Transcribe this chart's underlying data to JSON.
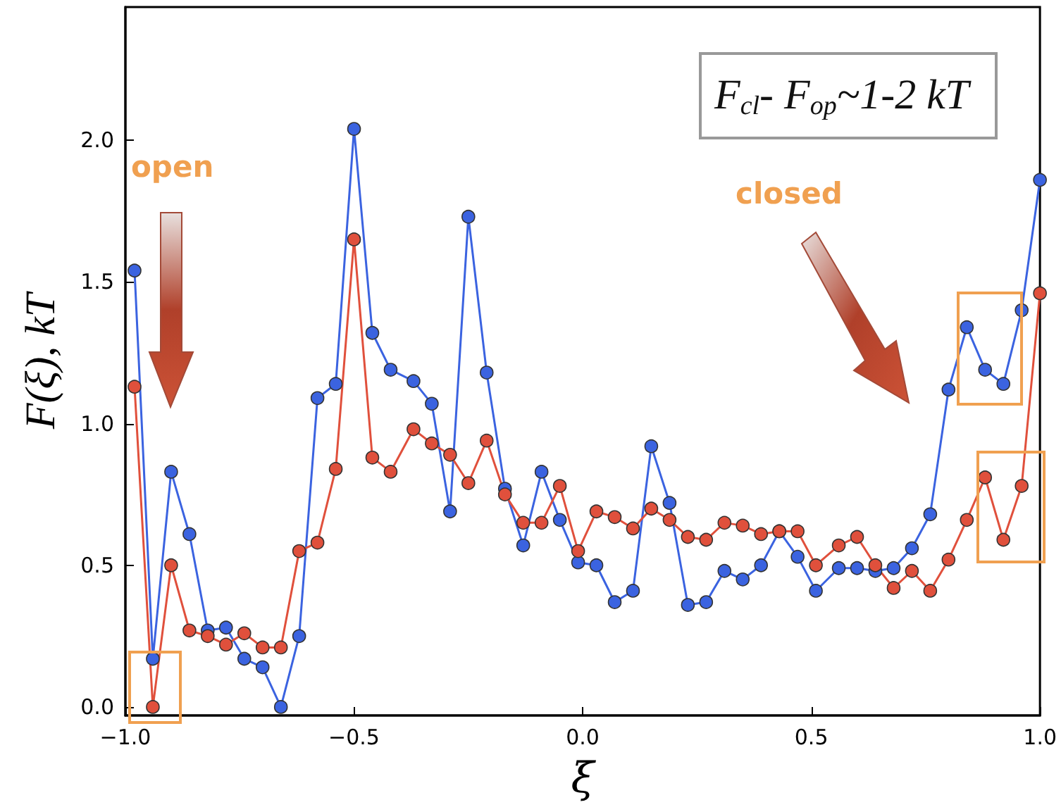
{
  "chart_data": {
    "type": "line",
    "xlabel": "ξ",
    "ylabel": "F(ξ), kT",
    "x": [
      -0.98,
      -0.94,
      -0.9,
      -0.86,
      -0.82,
      -0.78,
      -0.74,
      -0.7,
      -0.66,
      -0.62,
      -0.58,
      -0.54,
      -0.5,
      -0.46,
      -0.42,
      -0.37,
      -0.33,
      -0.29,
      -0.25,
      -0.21,
      -0.17,
      -0.13,
      -0.09,
      -0.05,
      -0.01,
      0.03,
      0.07,
      0.11,
      0.15,
      0.19,
      0.23,
      0.27,
      0.31,
      0.35,
      0.39,
      0.43,
      0.47,
      0.51,
      0.56,
      0.6,
      0.64,
      0.68,
      0.72,
      0.76,
      0.8,
      0.84,
      0.88,
      0.92,
      0.96,
      1.0
    ],
    "series": [
      {
        "color": "#3b63e0",
        "values": [
          1.54,
          0.17,
          0.83,
          0.61,
          0.27,
          0.28,
          0.17,
          0.14,
          0.0,
          0.25,
          1.09,
          1.14,
          2.04,
          1.32,
          1.19,
          1.15,
          1.07,
          0.69,
          1.73,
          1.18,
          0.77,
          0.57,
          0.83,
          0.66,
          0.51,
          0.5,
          0.37,
          0.41,
          0.92,
          0.72,
          0.36,
          0.37,
          0.48,
          0.45,
          0.5,
          0.62,
          0.53,
          0.41,
          0.49,
          0.49,
          0.48,
          0.49,
          0.56,
          0.68,
          1.12,
          1.34,
          1.19,
          1.14,
          1.4,
          1.86
        ]
      },
      {
        "color": "#e0503c",
        "values": [
          1.13,
          0.0,
          0.5,
          0.27,
          0.25,
          0.22,
          0.26,
          0.21,
          0.21,
          0.55,
          0.58,
          0.84,
          1.65,
          0.88,
          0.83,
          0.98,
          0.93,
          0.89,
          0.79,
          0.94,
          0.75,
          0.65,
          0.65,
          0.78,
          0.55,
          0.69,
          0.67,
          0.63,
          0.7,
          0.66,
          0.6,
          0.59,
          0.65,
          0.64,
          0.61,
          0.62,
          0.62,
          0.5,
          0.57,
          0.6,
          0.5,
          0.42,
          0.48,
          0.41,
          0.52,
          0.66,
          0.81,
          0.59,
          0.78,
          1.46
        ]
      }
    ],
    "xlim": [
      -1.0,
      1.0
    ],
    "xticks": [
      {
        "value": -1.0,
        "label": "−1.0"
      },
      {
        "value": -0.5,
        "label": "−0.5"
      },
      {
        "value": 0.0,
        "label": "0.0"
      },
      {
        "value": 0.5,
        "label": "0.5"
      },
      {
        "value": 1.0,
        "label": "1.0"
      }
    ],
    "ylim": [
      -0.03,
      2.47
    ],
    "yticks": [
      {
        "value": 0.0,
        "label": "0.0"
      },
      {
        "value": 0.5,
        "label": "0.5"
      },
      {
        "value": 1.0,
        "label": "1.0"
      },
      {
        "value": 1.5,
        "label": "1.5"
      },
      {
        "value": 2.0,
        "label": "2.0"
      }
    ],
    "annotations": [
      "open",
      "closed",
      "F$_{cl}$- F$_{op}$~1-2 kT"
    ],
    "grid": false,
    "marker": "circle",
    "line_style": "solid"
  }
}
